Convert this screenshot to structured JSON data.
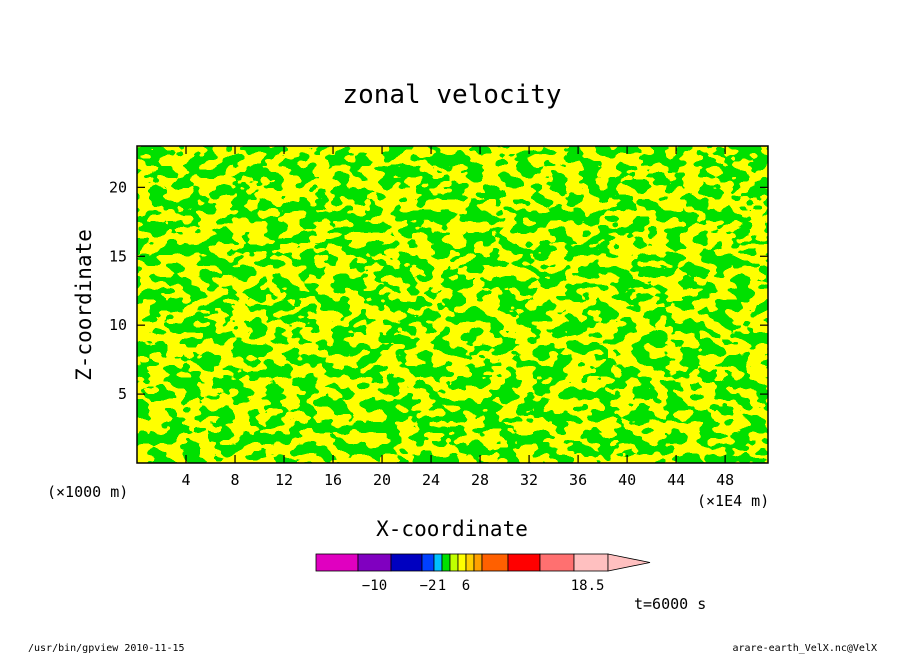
{
  "chart_data": {
    "type": "heatmap",
    "title": "zonal velocity",
    "xlabel": "X-coordinate",
    "ylabel": "Z-coordinate",
    "x_unit_left": "(×1000 m)",
    "x_unit_right": "(×1E4 m)",
    "xlim": [
      0,
      51.5
    ],
    "ylim": [
      0,
      23
    ],
    "x_ticks": [
      4,
      8,
      12,
      16,
      20,
      24,
      28,
      32,
      36,
      40,
      44,
      48
    ],
    "y_ticks": [
      5,
      10,
      15,
      20
    ],
    "contour_colors": {
      "low": "#00e000",
      "high": "#ffff00",
      "line": "#000000"
    },
    "colorbar": {
      "colors": [
        "#e000c0",
        "#8000c0",
        "#0000c0",
        "#0040ff",
        "#00c0ff",
        "#00e000",
        "#c0ff00",
        "#ffff00",
        "#ffd000",
        "#ffa000",
        "#ff6000",
        "#ff0000",
        "#ff7070",
        "#ffc0c0"
      ],
      "labels": [
        "−10",
        "−2",
        "1",
        "6",
        "18.5"
      ],
      "label_positions": [
        1.5,
        3.5,
        5,
        8,
        13.4
      ]
    },
    "time_label": "t=6000 s"
  },
  "footer": {
    "left": "/usr/bin/gpview   2010-11-15",
    "right": "arare-earth_VelX.nc@VelX"
  }
}
